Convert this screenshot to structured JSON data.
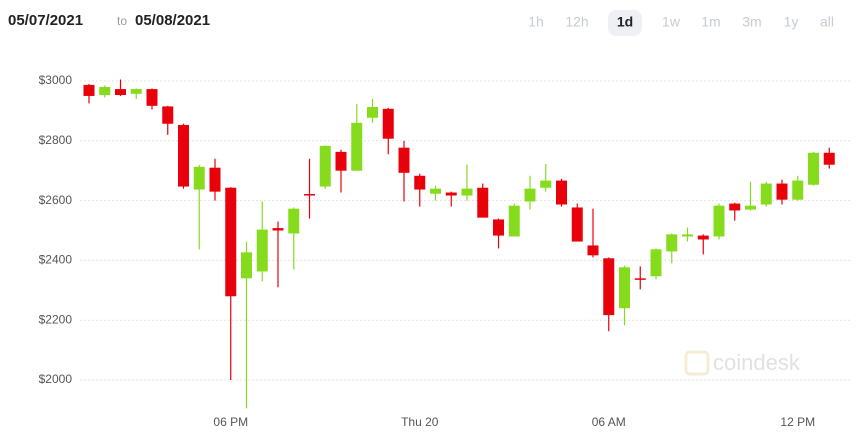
{
  "header": {
    "from": "05/07/2021",
    "separator": "to",
    "to": "05/08/2021",
    "ranges": [
      "1h",
      "12h",
      "1d",
      "1w",
      "1m",
      "3m",
      "1y",
      "all"
    ],
    "active_range": "1d"
  },
  "chart_data": {
    "type": "candlestick",
    "watermark": "coindesk",
    "up_color": "#86dc1c",
    "down_color": "#e8000b",
    "grid": true,
    "ylim": [
      1900,
      3045
    ],
    "yticks": [
      {
        "value": 2000,
        "label": "$2000"
      },
      {
        "value": 2200,
        "label": "$2200"
      },
      {
        "value": 2400,
        "label": "$2400"
      },
      {
        "value": 2600,
        "label": "$2600"
      },
      {
        "value": 2800,
        "label": "$2800"
      },
      {
        "value": 3000,
        "label": "$3000"
      }
    ],
    "categories": [
      null,
      null,
      null,
      null,
      null,
      null,
      null,
      null,
      null,
      "06 PM",
      null,
      null,
      null,
      null,
      null,
      null,
      null,
      null,
      null,
      null,
      null,
      "Thu 20",
      null,
      null,
      null,
      null,
      null,
      null,
      null,
      null,
      null,
      null,
      null,
      "06 AM",
      null,
      null,
      null,
      null,
      null,
      null,
      null,
      null,
      null,
      null,
      null,
      "12 PM",
      null,
      null
    ],
    "open": [
      2987,
      2953,
      2973,
      2957,
      2973,
      2915,
      2853,
      2637,
      2710,
      2643,
      2340,
      2363,
      2508,
      2490,
      2622,
      2647,
      2763,
      2700,
      2877,
      2907,
      2777,
      2683,
      2623,
      2627,
      2617,
      2643,
      2537,
      2480,
      2597,
      2643,
      2667,
      2577,
      2450,
      2407,
      2240,
      2340,
      2347,
      2430,
      2480,
      2483,
      2480,
      2590,
      2570,
      2587,
      2657,
      2603,
      2653,
      2760
    ],
    "high": [
      2990,
      2985,
      3005,
      2975,
      2975,
      2917,
      2857,
      2720,
      2740,
      2645,
      2463,
      2597,
      2530,
      2577,
      2740,
      2785,
      2770,
      2923,
      2940,
      2910,
      2800,
      2690,
      2650,
      2630,
      2720,
      2657,
      2540,
      2590,
      2683,
      2723,
      2673,
      2590,
      2573,
      2410,
      2383,
      2380,
      2440,
      2490,
      2510,
      2487,
      2590,
      2593,
      2663,
      2663,
      2670,
      2683,
      2763,
      2777
    ],
    "low": [
      2925,
      2945,
      2950,
      2940,
      2905,
      2820,
      2640,
      2437,
      2600,
      2000,
      1905,
      2330,
      2310,
      2370,
      2540,
      2640,
      2627,
      2700,
      2860,
      2755,
      2597,
      2580,
      2600,
      2580,
      2600,
      2543,
      2440,
      2480,
      2570,
      2630,
      2580,
      2463,
      2410,
      2163,
      2183,
      2303,
      2337,
      2390,
      2463,
      2420,
      2470,
      2533,
      2567,
      2580,
      2587,
      2600,
      2650,
      2707
    ],
    "close": [
      2950,
      2980,
      2953,
      2973,
      2917,
      2857,
      2647,
      2713,
      2630,
      2280,
      2427,
      2503,
      2500,
      2573,
      2617,
      2783,
      2700,
      2860,
      2913,
      2807,
      2693,
      2637,
      2640,
      2617,
      2640,
      2543,
      2483,
      2583,
      2640,
      2667,
      2587,
      2463,
      2417,
      2217,
      2377,
      2337,
      2437,
      2487,
      2487,
      2470,
      2583,
      2567,
      2583,
      2657,
      2603,
      2667,
      2760,
      2720
    ]
  }
}
